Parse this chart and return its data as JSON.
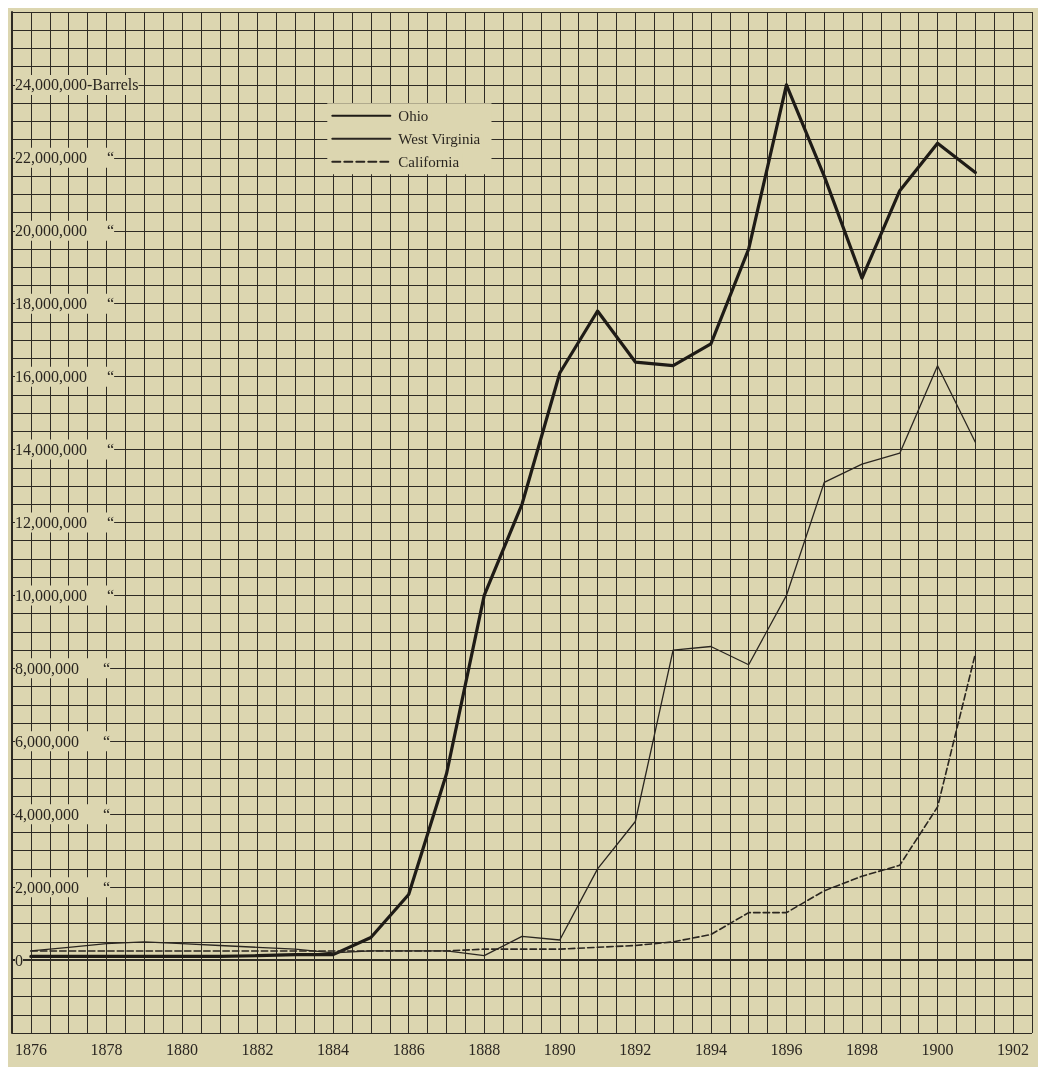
{
  "chart_data": {
    "type": "line",
    "x": [
      1876,
      1877,
      1878,
      1879,
      1880,
      1881,
      1882,
      1883,
      1884,
      1885,
      1886,
      1887,
      1888,
      1889,
      1890,
      1891,
      1892,
      1893,
      1894,
      1895,
      1896,
      1897,
      1898,
      1899,
      1900,
      1901
    ],
    "series": [
      {
        "name": "Ohio",
        "color": "#1e1b16",
        "line_style": "solid",
        "values": [
          100000,
          100000,
          100000,
          100000,
          100000,
          100000,
          120000,
          150000,
          150000,
          620000,
          1800000,
          5100000,
          10000000,
          12500000,
          16100000,
          17800000,
          16400000,
          16300000,
          16900000,
          19500000,
          24000000,
          21500000,
          18700000,
          21100000,
          22400000,
          21600000
        ]
      },
      {
        "name": "West Virginia",
        "color": "#2a2620",
        "line_style": "solid",
        "values": [
          250000,
          350000,
          450000,
          500000,
          450000,
          400000,
          350000,
          300000,
          200000,
          250000,
          250000,
          250000,
          120000,
          650000,
          550000,
          2500000,
          3800000,
          8500000,
          8600000,
          8100000,
          10000000,
          13100000,
          13600000,
          13900000,
          16300000,
          14200000
        ]
      },
      {
        "name": "California",
        "color": "#2a2620",
        "line_style": "dashed",
        "values": [
          250000,
          250000,
          250000,
          250000,
          250000,
          250000,
          250000,
          250000,
          250000,
          250000,
          250000,
          250000,
          300000,
          300000,
          300000,
          350000,
          400000,
          500000,
          700000,
          1300000,
          1300000,
          1900000,
          2300000,
          2600000,
          4200000,
          8400000
        ]
      }
    ],
    "xlim": [
      1875.5,
      1902.5
    ],
    "xticks": [
      1876,
      1878,
      1880,
      1882,
      1884,
      1886,
      1888,
      1890,
      1892,
      1894,
      1896,
      1898,
      1900,
      1902
    ],
    "ylim": [
      -2000000,
      26000000
    ],
    "yticks": [
      {
        "value": 0,
        "label": "0"
      },
      {
        "value": 2000000,
        "label": "2,000,000      “"
      },
      {
        "value": 4000000,
        "label": "4,000,000      “"
      },
      {
        "value": 6000000,
        "label": "6,000,000      “"
      },
      {
        "value": 8000000,
        "label": "8,000,000      “"
      },
      {
        "value": 10000000,
        "label": "10,000,000     “"
      },
      {
        "value": 12000000,
        "label": "12,000,000     “"
      },
      {
        "value": 14000000,
        "label": "14,000,000     “"
      },
      {
        "value": 16000000,
        "label": "16,000,000     “"
      },
      {
        "value": 18000000,
        "label": "18,000,000     “"
      },
      {
        "value": 20000000,
        "label": "20,000,000     “"
      },
      {
        "value": 22000000,
        "label": "22,000,000     “"
      },
      {
        "value": 24000000,
        "label": "24,000,000-Barrels"
      }
    ],
    "grid": true,
    "legend": "top",
    "marker": "none"
  }
}
